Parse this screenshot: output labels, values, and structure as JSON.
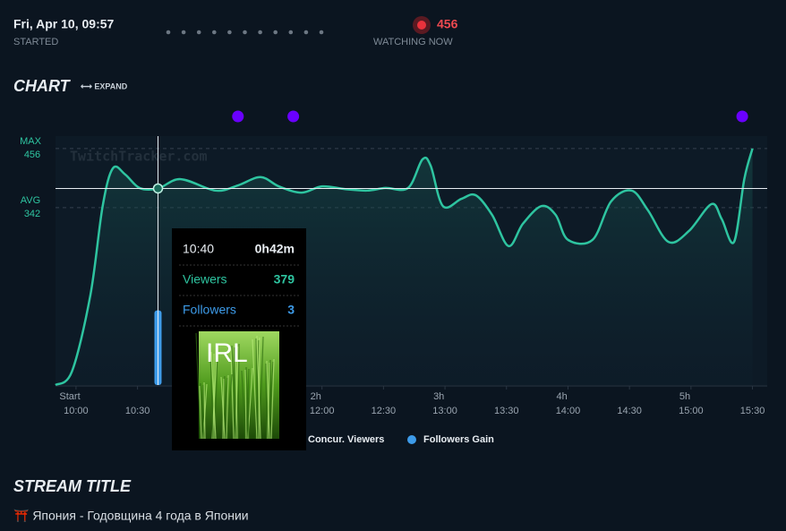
{
  "header": {
    "started_value": "Fri, Apr 10, 09:57",
    "started_label": "STARTED",
    "watching_value": "456",
    "watching_label": "WATCHING NOW"
  },
  "chart_heading": "CHART",
  "expand": "⟷ EXPAND",
  "watermark": "TwitchTracker.com",
  "chart_data": {
    "type": "line",
    "x": [
      -10,
      -2,
      7,
      13,
      18,
      24,
      31,
      40,
      51,
      68,
      79,
      90,
      99,
      110,
      120,
      131,
      142,
      151,
      162,
      169,
      173,
      179,
      188,
      195,
      203,
      211,
      218,
      227,
      234,
      240,
      252,
      261,
      271,
      279,
      289,
      299,
      310,
      315,
      321,
      326,
      330
    ],
    "series": [
      {
        "name": "Concur. Viewers",
        "color": "#2ec4a0",
        "values": [
          0,
          26,
          173,
          345,
          418,
          406,
          380,
          379,
          397,
          375,
          385,
          401,
          383,
          371,
          383,
          378,
          375,
          380,
          380,
          435,
          423,
          345,
          359,
          366,
          328,
          268,
          311,
          345,
          328,
          280,
          280,
          354,
          375,
          337,
          276,
          297,
          349,
          320,
          276,
          397,
          456
        ]
      },
      {
        "name": "Followers Gain",
        "color": "#3d9be9",
        "axis": "y2",
        "type": "bar",
        "x": [
          40
        ],
        "values": [
          3
        ]
      }
    ],
    "xlim": [
      -10,
      335
    ],
    "xticks": [
      {
        "value": 0,
        "label": "10:00"
      },
      {
        "value": 30,
        "label": "10:30"
      },
      {
        "value": 120,
        "label": "12:00"
      },
      {
        "value": 150,
        "label": "12:30"
      },
      {
        "value": 180,
        "label": "13:00"
      },
      {
        "value": 210,
        "label": "13:30"
      },
      {
        "value": 240,
        "label": "14:00"
      },
      {
        "value": 270,
        "label": "14:30"
      },
      {
        "value": 300,
        "label": "15:00"
      },
      {
        "value": 330,
        "label": "15:30"
      }
    ],
    "duration_ticks": [
      {
        "value": -3,
        "label": "Start"
      },
      {
        "value": 117,
        "label": "2h"
      },
      {
        "value": 177,
        "label": "3h"
      },
      {
        "value": 237,
        "label": "4h"
      },
      {
        "value": 297,
        "label": "5h"
      }
    ],
    "ylim": [
      0,
      480
    ],
    "y2lim": [
      0,
      10
    ],
    "reference_lines": [
      {
        "label": "MAX",
        "value": 456
      },
      {
        "label": "AVG",
        "value": 342
      }
    ],
    "event_markers": {
      "color": "#6a00ff",
      "x": [
        79,
        106,
        325
      ]
    },
    "tooltip": {
      "time": "10:40",
      "duration": "0h42m",
      "viewers_label": "Viewers",
      "followers_label": "Followers",
      "image_text": "IRL"
    }
  },
  "stream_title_heading": "STREAM TITLE",
  "stream_title": "⛩️ Япония - Годовщина 4 года в Японии"
}
